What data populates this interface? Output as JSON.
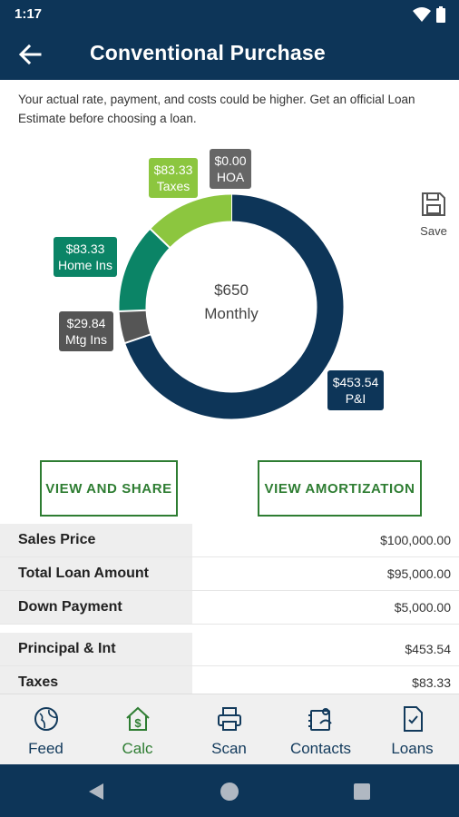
{
  "status_bar": {
    "time": "1:17"
  },
  "app_bar": {
    "title": "Conventional Purchase"
  },
  "disclaimer": "Your actual rate, payment, and costs could be higher. Get an official Loan Estimate before choosing a loan.",
  "chart_data": {
    "type": "pie",
    "style": "donut",
    "center_value": "$650",
    "center_label": "Monthly",
    "slices": [
      {
        "label": "P&I",
        "display": "$453.54",
        "value": 453.54,
        "color": "#0d3558"
      },
      {
        "label": "Mtg Ins",
        "display": "$29.84",
        "value": 29.84,
        "color": "#555555"
      },
      {
        "label": "Home Ins",
        "display": "$83.33",
        "value": 83.33,
        "color": "#0b8466"
      },
      {
        "label": "Taxes",
        "display": "$83.33",
        "value": 83.33,
        "color": "#8cc63f"
      },
      {
        "label": "HOA",
        "display": "$0.00",
        "value": 0,
        "color": "#666666"
      }
    ]
  },
  "save": {
    "label": "Save",
    "icon": "save-icon"
  },
  "buttons": {
    "share": "VIEW AND SHARE",
    "amortization": "VIEW AMORTIZATION"
  },
  "summary": [
    {
      "label": "Sales Price",
      "value": "$100,000.00"
    },
    {
      "label": "Total Loan Amount",
      "value": "$95,000.00"
    },
    {
      "label": "Down Payment",
      "value": "$5,000.00"
    }
  ],
  "payment": [
    {
      "label": "Principal & Int",
      "value": "$453.54"
    },
    {
      "label": "Taxes",
      "value": "$83.33"
    }
  ],
  "nav": {
    "items": [
      {
        "label": "Feed",
        "icon": "globe-icon"
      },
      {
        "label": "Calc",
        "icon": "house-dollar-icon",
        "active": true
      },
      {
        "label": "Scan",
        "icon": "printer-icon"
      },
      {
        "label": "Contacts",
        "icon": "contacts-icon"
      },
      {
        "label": "Loans",
        "icon": "document-check-icon"
      }
    ]
  },
  "colors": {
    "primary": "#0d3558",
    "accent_green": "#2e7d32"
  }
}
